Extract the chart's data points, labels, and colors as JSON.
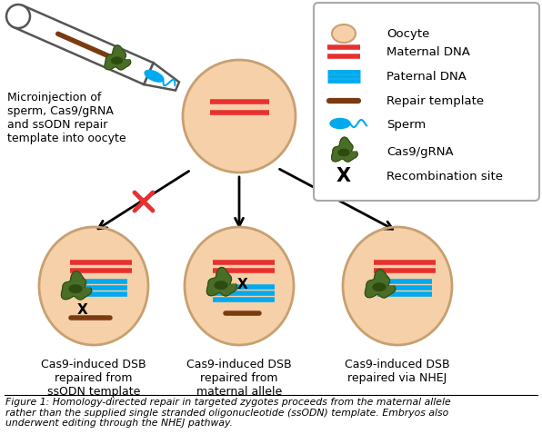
{
  "oocyte_fill": "#f5d0a9",
  "oocyte_edge": "#c8a070",
  "dna_red": "#e83030",
  "dna_blue": "#00aaee",
  "dna_brown": "#7b3b10",
  "cas9_green_outer": "#4a6e28",
  "cas9_green_inner": "#2e4a10",
  "sperm_blue": "#00aaee",
  "arrow_color": "#111111",
  "cross_color": "#e83030",
  "figure_caption": "Figure 1: Homology-directed repair in targeted zygotes proceeds from the maternal allele\nrather than the supplied single stranded oligonucleotide (ssODN) template. Embryos also\nunderwent editing through the NHEJ pathway.",
  "annotation_text": "Microinjection of\nsperm, Cas9/gRNA\nand ssODN repair\ntemplate into oocyte",
  "label1": "Cas9-induced DSB\nrepaired from\nssODN template",
  "label2": "Cas9-induced DSB\nrepaired from\nmaternal allele",
  "label3": "Cas9-induced DSB\nrepaired via NHEJ"
}
